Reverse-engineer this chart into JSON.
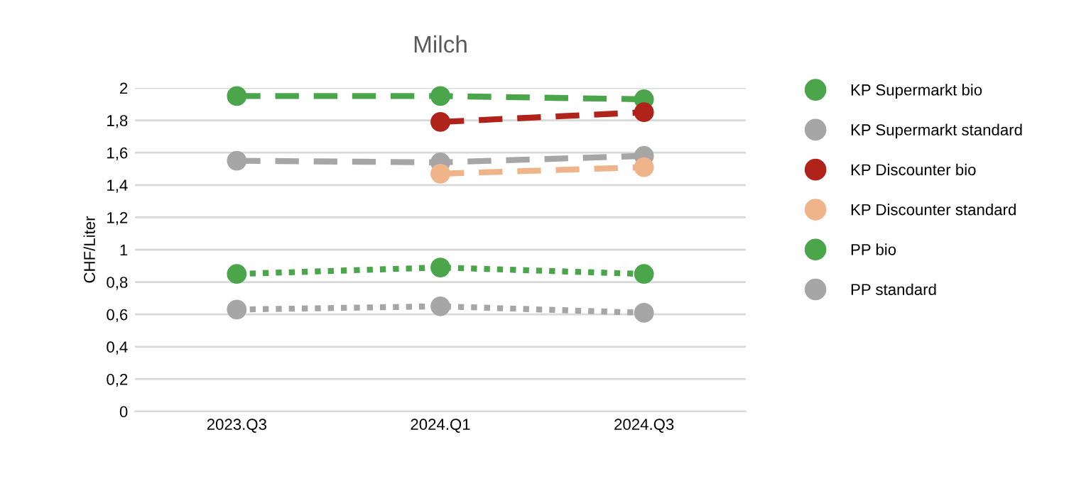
{
  "chart_data": {
    "type": "line",
    "title": "Milch",
    "ylabel": "CHF/Liter",
    "categories": [
      "2023.Q3",
      "2024.Q1",
      "2024.Q3"
    ],
    "series": [
      {
        "name": "KP Supermarkt bio",
        "color": "#4ba54b",
        "values": [
          1.95,
          1.95,
          1.93
        ],
        "line_style": "dashed"
      },
      {
        "name": "KP Supermarkt standard",
        "color": "#a6a6a6",
        "values": [
          1.55,
          1.54,
          1.58
        ],
        "line_style": "dashed"
      },
      {
        "name": "KP Discounter bio",
        "color": "#b0231a",
        "values": [
          null,
          1.79,
          1.85
        ],
        "line_style": "dashed"
      },
      {
        "name": "KP Discounter standard",
        "color": "#f0b48a",
        "values": [
          null,
          1.47,
          1.51
        ],
        "line_style": "dashed"
      },
      {
        "name": "PP bio",
        "color": "#4ba54b",
        "values": [
          0.85,
          0.89,
          0.85
        ],
        "line_style": "dotted"
      },
      {
        "name": "PP standard",
        "color": "#a6a6a6",
        "values": [
          0.63,
          0.65,
          0.61
        ],
        "line_style": "dotted"
      }
    ],
    "ylim": [
      0,
      2
    ],
    "yticks": [
      0,
      {
        "value": 0.2,
        "label": "0,2"
      },
      {
        "value": 0.4,
        "label": "0,4"
      },
      {
        "value": 0.6,
        "label": "0,6"
      },
      {
        "value": 0.8,
        "label": "0,8"
      },
      1,
      {
        "value": 1.2,
        "label": "1,2"
      },
      {
        "value": 1.4,
        "label": "1,4"
      },
      {
        "value": 1.6,
        "label": "1,6"
      },
      {
        "value": 1.8,
        "label": "1,8"
      },
      2
    ],
    "grid": "y",
    "legend": "right",
    "marker": "circle"
  }
}
